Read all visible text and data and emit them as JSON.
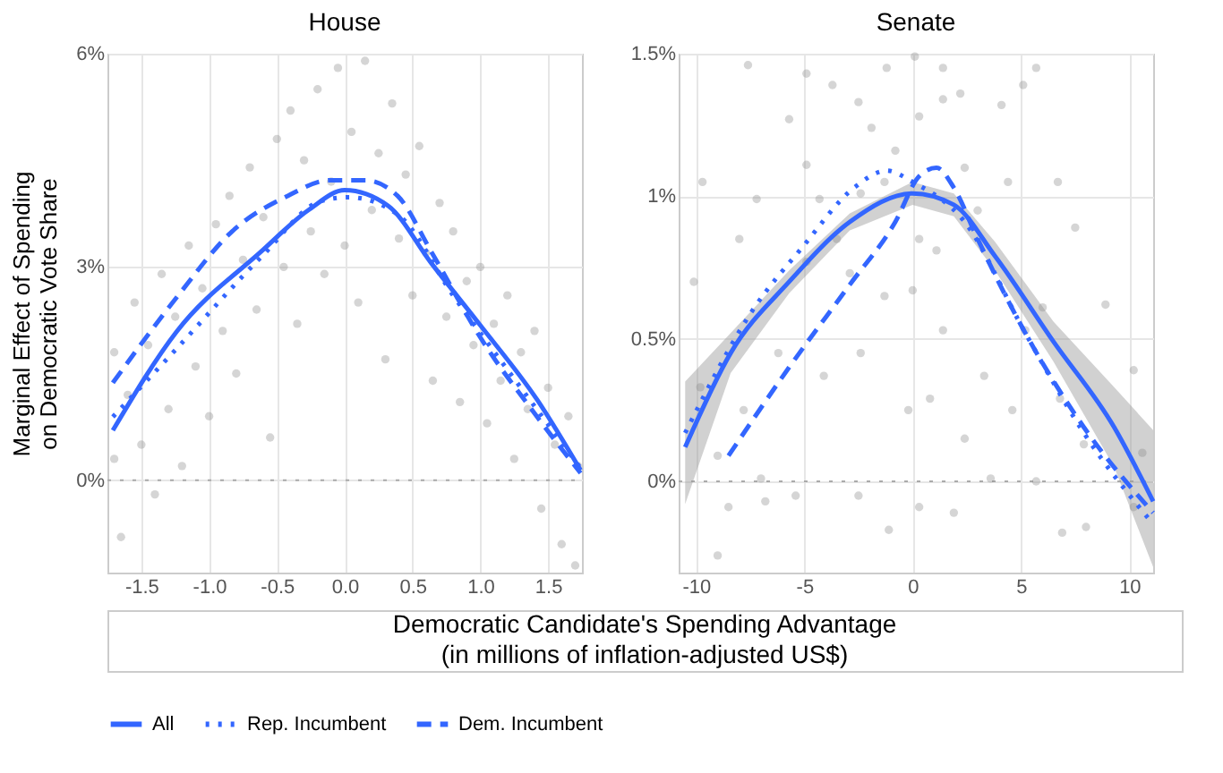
{
  "chart_data": [
    {
      "type": "scatter",
      "title": "House",
      "xlabel": "Democratic Candidate's Spending Advantage (in millions of inflation-adjusted US$)",
      "ylabel": "Marginal Effect of Spending on Democratic Vote Share",
      "xlim": [
        -1.75,
        1.75
      ],
      "ylim": [
        -1.3,
        6
      ],
      "xticks": [
        -1.5,
        {
          "value": -1.0,
          "label": "-1.0"
        },
        -0.5,
        {
          "value": 0,
          "label": "0.0"
        },
        0.5,
        {
          "value": 1,
          "label": "1.0"
        },
        1.5
      ],
      "yticks": [
        {
          "value": 0,
          "label": "0%"
        },
        {
          "value": 3,
          "label": "3%"
        },
        {
          "value": 6,
          "label": "6%"
        }
      ],
      "grid": true,
      "legend": "bottom",
      "ref_lines": [
        {
          "axis": "y",
          "value": 0,
          "color": "#aaaaaa",
          "line_style": "dotted"
        }
      ],
      "series": [
        {
          "color": "#888888",
          "marker": "circle",
          "x": [
            -1.7,
            -1.7,
            -1.65,
            -1.6,
            -1.55,
            -1.5,
            -1.45,
            -1.4,
            -1.35,
            -1.3,
            -1.25,
            -1.2,
            -1.15,
            -1.1,
            -1.05,
            -1.0,
            -0.95,
            -0.9,
            -0.85,
            -0.8,
            -0.75,
            -0.7,
            -0.65,
            -0.6,
            -0.55,
            -0.5,
            -0.45,
            -0.4,
            -0.35,
            -0.3,
            -0.25,
            -0.2,
            -0.15,
            -0.1,
            -0.05,
            0.0,
            0.05,
            0.1,
            0.15,
            0.2,
            0.25,
            0.3,
            0.35,
            0.4,
            0.45,
            0.5,
            0.55,
            0.6,
            0.65,
            0.7,
            0.75,
            0.8,
            0.85,
            0.9,
            0.95,
            1.0,
            1.05,
            1.1,
            1.15,
            1.2,
            1.25,
            1.3,
            1.35,
            1.4,
            1.45,
            1.5,
            1.55,
            1.6,
            1.65,
            1.7,
            1.72
          ],
          "values": [
            0.3,
            1.8,
            -0.8,
            1.2,
            2.5,
            0.5,
            1.9,
            -0.2,
            2.9,
            1.0,
            2.3,
            0.2,
            3.3,
            1.6,
            2.7,
            0.9,
            3.6,
            2.1,
            4.0,
            1.5,
            3.1,
            4.4,
            2.4,
            3.7,
            0.6,
            4.8,
            3.0,
            5.2,
            2.2,
            4.5,
            3.5,
            5.5,
            2.9,
            4.2,
            5.8,
            3.3,
            4.9,
            2.5,
            5.9,
            3.8,
            4.6,
            1.7,
            5.3,
            3.4,
            4.3,
            2.6,
            4.7,
            3.2,
            1.4,
            3.9,
            2.3,
            3.5,
            1.1,
            2.8,
            1.9,
            3.0,
            0.8,
            2.2,
            1.4,
            2.6,
            0.3,
            1.8,
            1.0,
            2.1,
            -0.4,
            1.3,
            0.5,
            -0.9,
            0.9,
            -1.2,
            0.2
          ]
        },
        {
          "type": "line",
          "name": "All",
          "color": "#3366ff",
          "line_style": "solid",
          "marker": "none",
          "x": [
            -1.71,
            -1.24,
            -0.62,
            -0.26,
            0,
            0.32,
            0.64,
            1.0,
            1.42,
            1.74
          ],
          "values": [
            0.7,
            2.09,
            3.21,
            3.81,
            4.08,
            3.86,
            3.05,
            2.18,
            1.13,
            0.14
          ]
        },
        {
          "type": "line",
          "name": "Rep. Incumbent",
          "color": "#3366ff",
          "line_style": "dotted",
          "marker": "none",
          "x": [
            -1.71,
            -1.24,
            -0.62,
            -0.17,
            0.03,
            0.39,
            0.81,
            1.21,
            1.74
          ],
          "values": [
            0.89,
            1.85,
            3.13,
            3.93,
            3.98,
            3.74,
            2.57,
            1.53,
            0.17
          ]
        },
        {
          "type": "line",
          "name": "Dem. Incumbent",
          "color": "#3366ff",
          "line_style": "dashed",
          "marker": "none",
          "x": [
            -1.71,
            -1.24,
            -0.83,
            -0.42,
            -0.11,
            0.15,
            0.39,
            0.64,
            1.0,
            1.42,
            1.74
          ],
          "values": [
            1.37,
            2.57,
            3.5,
            4.0,
            4.22,
            4.22,
            4.0,
            3.21,
            2.01,
            0.89,
            0.1
          ]
        }
      ]
    },
    {
      "type": "scatter",
      "title": "Senate",
      "xlim": [
        -10.8,
        11.1
      ],
      "ylim": [
        -0.32,
        1.5
      ],
      "xticks": [
        -10,
        -5,
        0,
        5,
        10
      ],
      "yticks": [
        {
          "value": 0,
          "label": "0%"
        },
        {
          "value": 0.5,
          "label": "0.5%"
        },
        {
          "value": 1,
          "label": "1%"
        },
        {
          "value": 1.5,
          "label": "1.5%"
        }
      ],
      "grid": true,
      "legend": "bottom",
      "ref_lines": [
        {
          "axis": "y",
          "value": 0,
          "color": "#aaaaaa",
          "line_style": "dotted"
        }
      ],
      "series": [
        {
          "color": "#888888",
          "marker": "circle",
          "x": [
            -7.6,
            -4.9,
            -3.7,
            -2.5,
            -1.2,
            0.1,
            1.4,
            2.2,
            4.1,
            5.1,
            5.7,
            -9.7,
            -10.1,
            -8.0,
            -7.2,
            -4.9,
            -5.7,
            -1.9,
            2.4,
            6.7,
            7.5,
            8.9,
            10.2,
            10.6,
            10.2,
            6.9,
            8.0,
            5.7,
            3.6,
            1.9,
            -1.1,
            -2.5,
            -5.4,
            -6.8,
            -8.5,
            -9.0,
            -7.0,
            -7.8,
            -6.2,
            -4.1,
            -2.4,
            -0.2,
            0.8,
            2.4,
            3.3,
            4.6,
            0,
            -1.3,
            1.4,
            -2.9,
            -3.5,
            0.3,
            1.1,
            3.0,
            4.4,
            -0.8,
            0.3,
            1.4,
            -1.3,
            -2.4,
            -4.3,
            -4.9,
            -9.8,
            -9.0,
            5.2,
            6.0,
            6.8,
            7.9,
            0.3
          ],
          "values": [
            1.46,
            1.43,
            1.39,
            1.33,
            1.45,
            1.49,
            1.45,
            1.36,
            1.32,
            1.39,
            1.45,
            1.05,
            0.7,
            0.85,
            0.99,
            1.11,
            1.27,
            1.24,
            1.1,
            1.05,
            0.89,
            0.62,
            0.39,
            0.1,
            -0.09,
            -0.18,
            -0.16,
            0.0,
            0.01,
            -0.11,
            -0.17,
            -0.05,
            -0.05,
            -0.07,
            -0.09,
            -0.26,
            0.01,
            0.25,
            0.45,
            0.37,
            0.45,
            0.25,
            0.29,
            0.15,
            0.37,
            0.25,
            0.67,
            0.65,
            0.53,
            0.73,
            0.85,
            0.85,
            0.81,
            0.95,
            1.05,
            1.16,
            1.28,
            1.34,
            1.05,
            1.01,
            0.99,
            0.77,
            0.33,
            0.09,
            0.53,
            0.61,
            0.29,
            0.13,
            -0.09
          ]
        },
        {
          "type": "line",
          "name": "All",
          "color": "#3366ff",
          "line_style": "solid",
          "marker": "none",
          "x": [
            -10.5,
            -8.4,
            -5.7,
            -2.9,
            0,
            1.9,
            3.8,
            6.5,
            9.3,
            11.1
          ],
          "values": [
            0.12,
            0.45,
            0.7,
            0.91,
            1.01,
            0.97,
            0.79,
            0.49,
            0.19,
            -0.07
          ],
          "lower": [
            -0.08,
            0.38,
            0.66,
            0.88,
            0.97,
            0.93,
            0.74,
            0.42,
            0.05,
            -0.3
          ],
          "upper": [
            0.35,
            0.52,
            0.74,
            0.94,
            1.05,
            1.01,
            0.84,
            0.56,
            0.33,
            0.18
          ]
        },
        {
          "type": "line",
          "name": "Rep. Incumbent",
          "color": "#3366ff",
          "line_style": "dotted",
          "marker": "none",
          "x": [
            -10.5,
            -7.3,
            -5.1,
            -2.7,
            -1.2,
            0,
            2.4,
            5.2,
            7.9,
            11.1
          ],
          "values": [
            0.17,
            0.61,
            0.82,
            1.03,
            1.09,
            1.05,
            0.91,
            0.52,
            0.17,
            -0.15
          ]
        },
        {
          "type": "line",
          "name": "Dem. Incumbent",
          "color": "#3366ff",
          "line_style": "dashed",
          "marker": "none",
          "x": [
            -8.5,
            -5.7,
            -2.9,
            -0.8,
            0.3,
            1.1,
            1.9,
            3.0,
            5.2,
            7.9,
            11.1
          ],
          "values": [
            0.09,
            0.4,
            0.69,
            0.91,
            1.07,
            1.1,
            1.03,
            0.85,
            0.52,
            0.19,
            -0.11
          ]
        }
      ]
    }
  ]
}
